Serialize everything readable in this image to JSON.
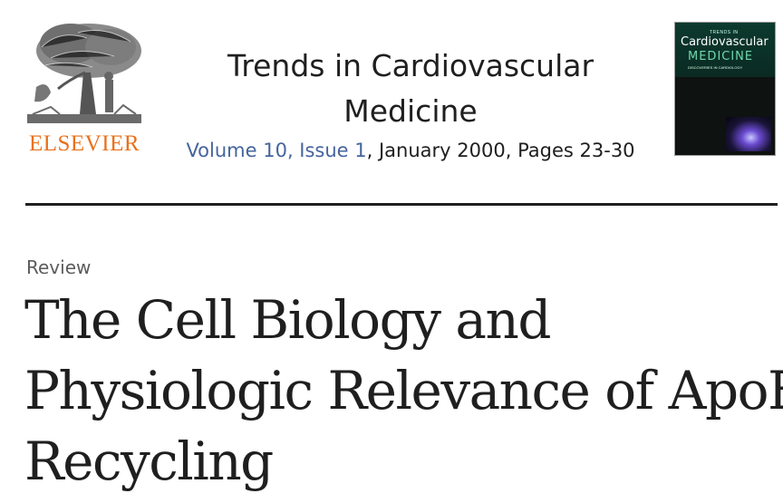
{
  "header": {
    "publisher": "ELSEVIER",
    "journal_title": "Trends in Cardiovascular Medicine",
    "volume_issue": "Volume 10, Issue 1",
    "citation_rest": ", January 2000, Pages 23-30"
  },
  "cover": {
    "small_text": "TRENDS IN",
    "title_line1": "Cardiovascular",
    "title_line2": "MEDICINE",
    "subtitle": "DISCOVERIES IN CARDIOLOGY"
  },
  "article": {
    "type": "Review",
    "title_lines": [
      "The Cell Biology and",
      "Physiologic Relevance of ApoE",
      "Recycling"
    ]
  },
  "colors": {
    "publisher_orange": "#e9711c",
    "link_blue": "#45659c",
    "text": "#1f1f1f",
    "muted": "#5c5c5c"
  },
  "icons": {
    "logo": "elsevier-tree-logo",
    "cover": "journal-cover-thumbnail"
  }
}
